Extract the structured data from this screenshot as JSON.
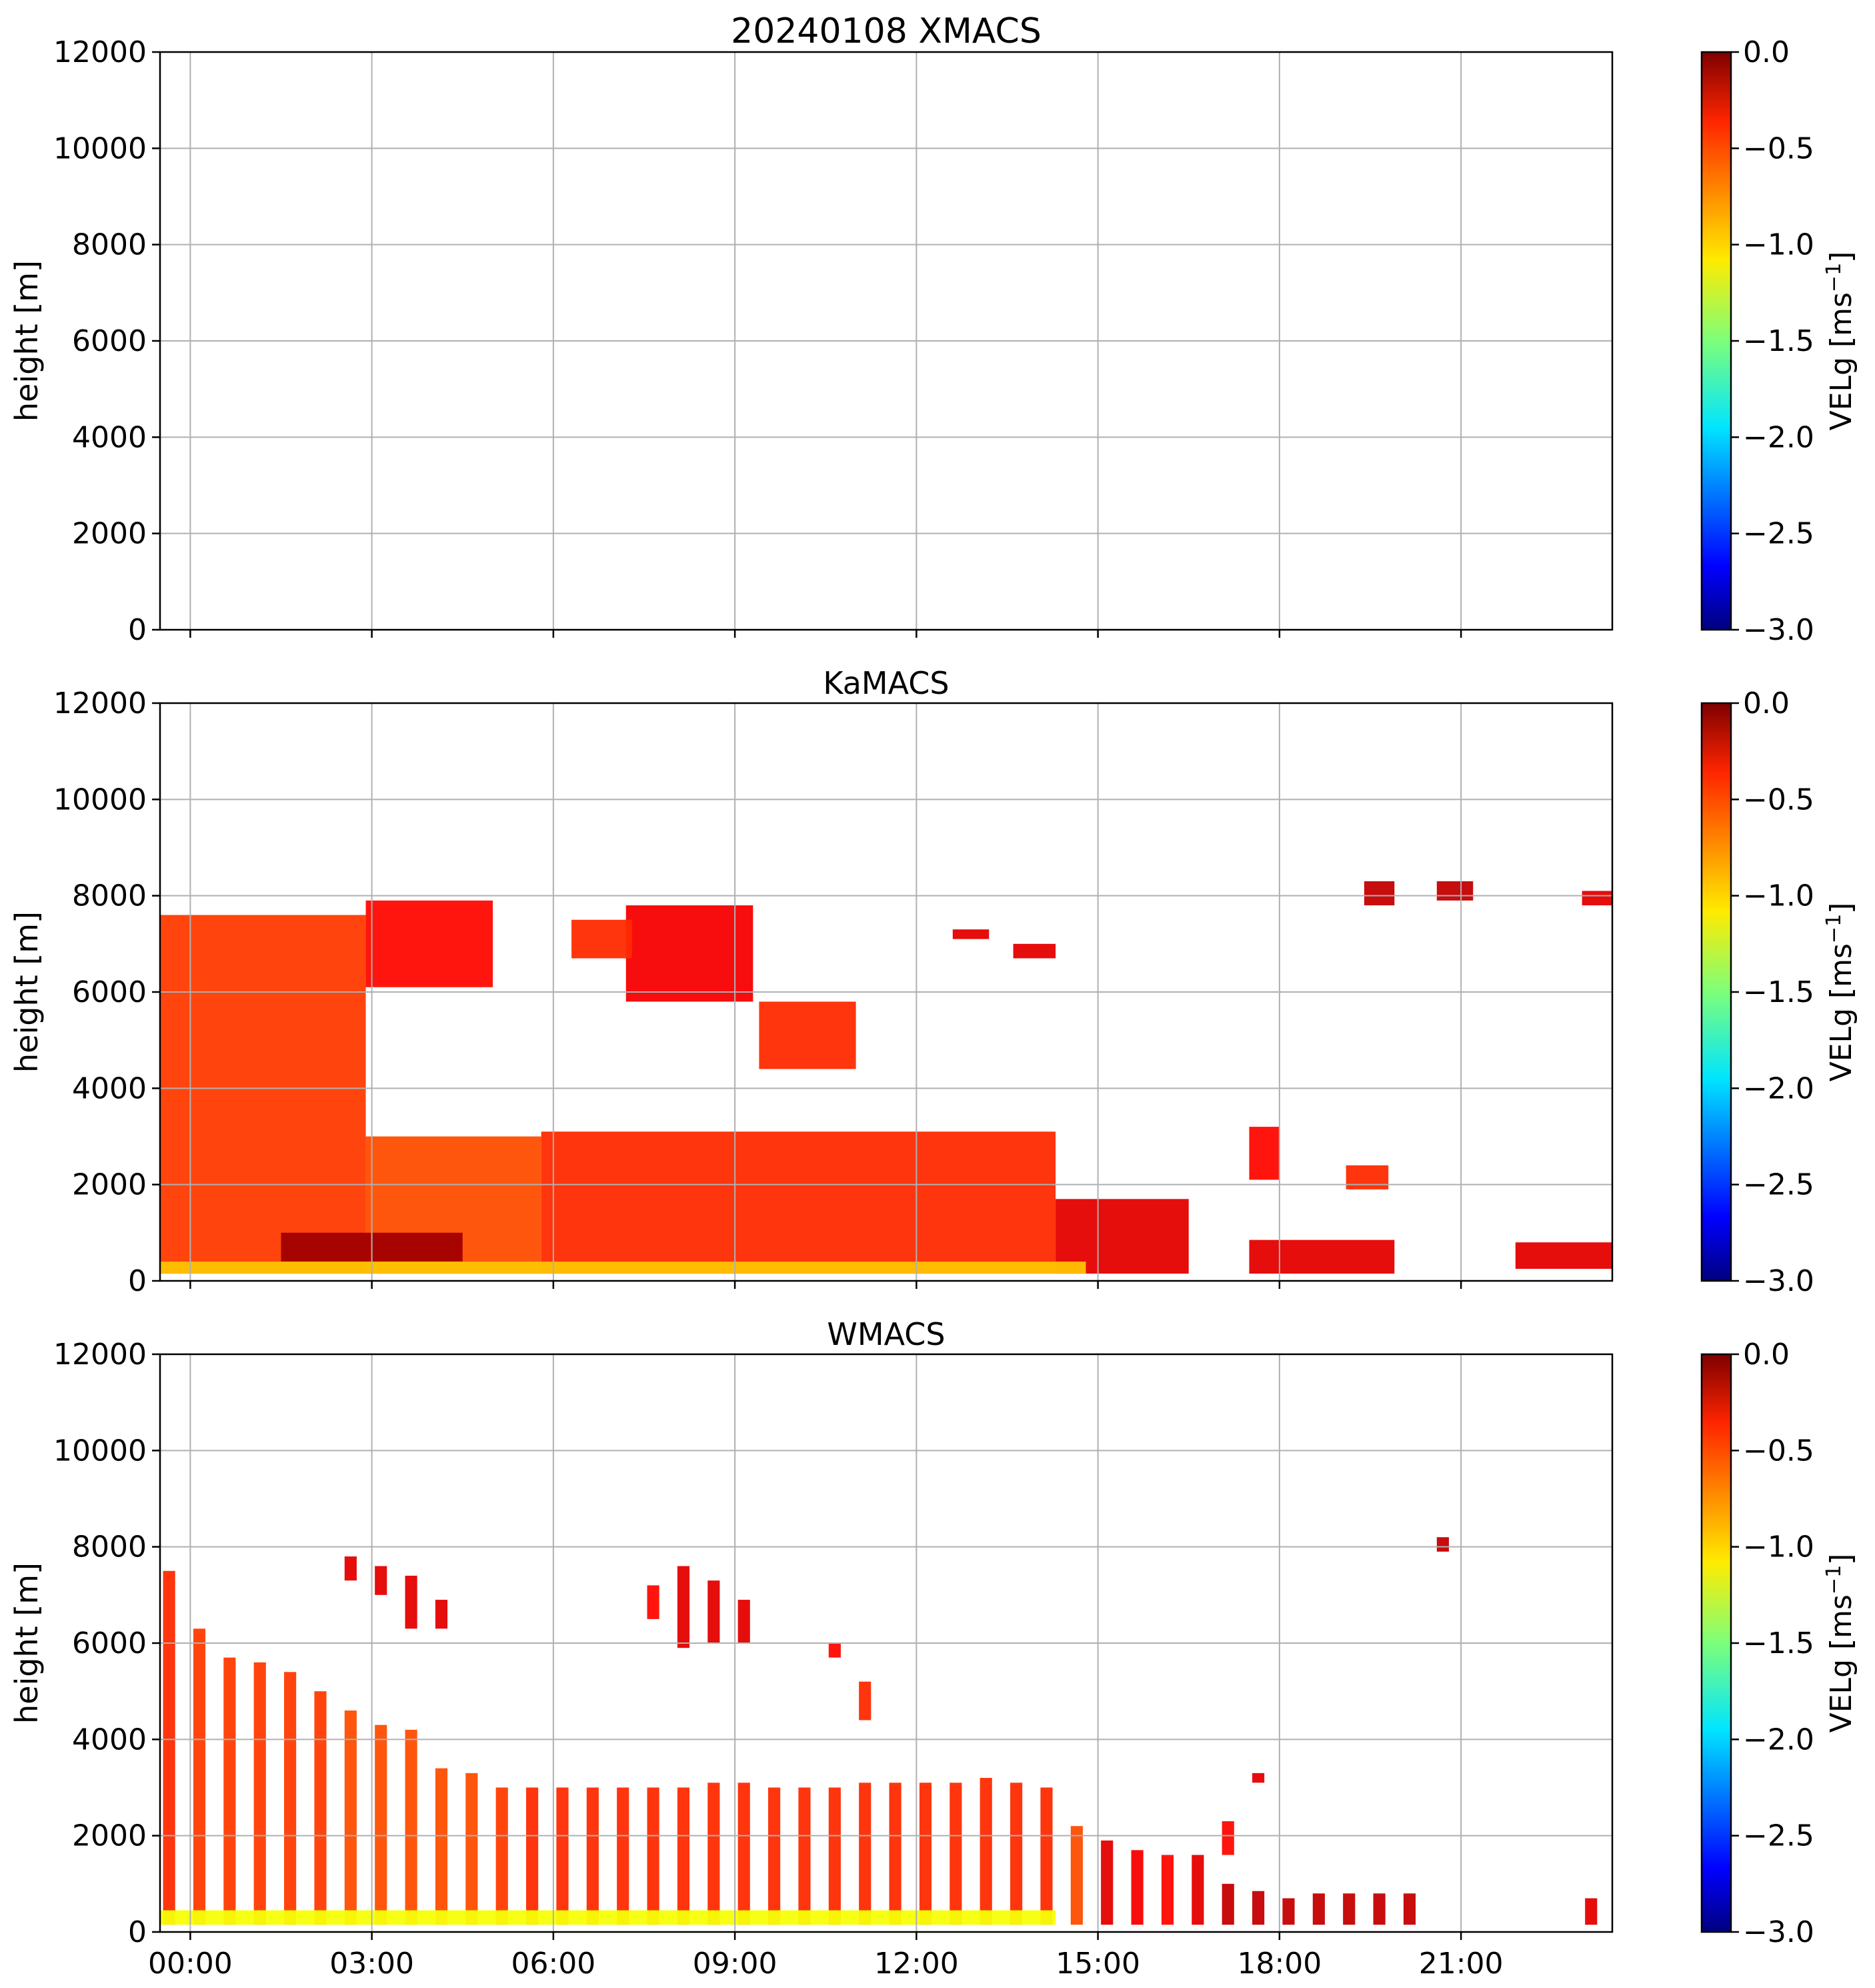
{
  "figure": {
    "title": "20240108 XMACS"
  },
  "chart_data": [
    {
      "type": "heatmap",
      "name": "XMACS",
      "title": "20240108 XMACS",
      "title_is_main": true,
      "ylabel": "height [m]",
      "ylim": [
        0,
        12000
      ],
      "y_ticks": [
        "0",
        "2000",
        "4000",
        "6000",
        "8000",
        "10000",
        "12000"
      ],
      "xlim_hours": [
        -0.5,
        23.5
      ],
      "x_ticks": [
        "00:00",
        "03:00",
        "06:00",
        "09:00",
        "12:00",
        "15:00",
        "18:00",
        "21:00"
      ],
      "x_tick_labels_shown": false,
      "grid": true,
      "colorbar": {
        "label_main": "VELg [ms",
        "label_sup": "−1",
        "label_end": "]",
        "range": [
          -3.0,
          0.0
        ],
        "ticks": [
          "0.0",
          "−0.5",
          "−1.0",
          "−1.5",
          "−2.0",
          "−2.5",
          "−3.0"
        ],
        "colormap": "jet"
      },
      "regions": []
    },
    {
      "type": "heatmap",
      "name": "KaMACS",
      "title": "KaMACS",
      "title_is_main": false,
      "ylabel": "height [m]",
      "ylim": [
        0,
        12000
      ],
      "y_ticks": [
        "0",
        "2000",
        "4000",
        "6000",
        "8000",
        "10000",
        "12000"
      ],
      "xlim_hours": [
        -0.5,
        23.5
      ],
      "x_ticks": [
        "00:00",
        "03:00",
        "06:00",
        "09:00",
        "12:00",
        "15:00",
        "18:00",
        "21:00"
      ],
      "x_tick_labels_shown": false,
      "grid": true,
      "colorbar": {
        "label_main": "VELg [ms",
        "label_sup": "−1",
        "label_end": "]",
        "range": [
          -3.0,
          0.0
        ],
        "ticks": [
          "0.0",
          "−0.5",
          "−1.0",
          "−1.5",
          "−2.0",
          "−2.5",
          "−3.0"
        ],
        "colormap": "jet"
      },
      "regions": [
        {
          "t0": -0.5,
          "t1": 2.9,
          "h0": 150,
          "h1": 7600,
          "v": -0.55
        },
        {
          "t0": 2.9,
          "t1": 5.8,
          "h0": 150,
          "h1": 3000,
          "v": -0.6
        },
        {
          "t0": 5.8,
          "t1": 14.3,
          "h0": 150,
          "h1": 3100,
          "v": -0.5
        },
        {
          "t0": 14.3,
          "t1": 16.5,
          "h0": 150,
          "h1": 1700,
          "v": -0.3
        },
        {
          "t0": 17.5,
          "t1": 19.9,
          "h0": 150,
          "h1": 850,
          "v": -0.3
        },
        {
          "t0": 21.9,
          "t1": 23.5,
          "h0": 250,
          "h1": 800,
          "v": -0.3
        },
        {
          "t0": 1.5,
          "t1": 4.5,
          "h0": 400,
          "h1": 1000,
          "v": -0.1
        },
        {
          "t0": -0.5,
          "t1": 14.8,
          "h0": 150,
          "h1": 400,
          "v": -0.95
        },
        {
          "t0": 2.9,
          "t1": 5.0,
          "h0": 6100,
          "h1": 7900,
          "v": -0.4
        },
        {
          "t0": 7.2,
          "t1": 9.3,
          "h0": 5800,
          "h1": 7800,
          "v": -0.35
        },
        {
          "t0": 9.4,
          "t1": 11.0,
          "h0": 4400,
          "h1": 5800,
          "v": -0.5
        },
        {
          "t0": 6.3,
          "t1": 7.3,
          "h0": 6700,
          "h1": 7500,
          "v": -0.5
        },
        {
          "t0": 13.6,
          "t1": 14.3,
          "h0": 6700,
          "h1": 7000,
          "v": -0.3
        },
        {
          "t0": 12.6,
          "t1": 13.2,
          "h0": 7100,
          "h1": 7300,
          "v": -0.3
        },
        {
          "t0": 17.5,
          "t1": 18.0,
          "h0": 2100,
          "h1": 3200,
          "v": -0.4
        },
        {
          "t0": 19.1,
          "t1": 19.8,
          "h0": 1900,
          "h1": 2400,
          "v": -0.5
        },
        {
          "t0": 19.4,
          "t1": 19.9,
          "h0": 7800,
          "h1": 8300,
          "v": -0.2
        },
        {
          "t0": 20.6,
          "t1": 21.2,
          "h0": 7900,
          "h1": 8300,
          "v": -0.2
        },
        {
          "t0": 23.0,
          "t1": 23.5,
          "h0": 7800,
          "h1": 8100,
          "v": -0.3
        }
      ]
    },
    {
      "type": "heatmap",
      "name": "WMACS",
      "title": "WMACS",
      "title_is_main": false,
      "ylabel": "height [m]",
      "ylim": [
        0,
        12000
      ],
      "y_ticks": [
        "0",
        "2000",
        "4000",
        "6000",
        "8000",
        "10000",
        "12000"
      ],
      "xlim_hours": [
        -0.5,
        23.5
      ],
      "x_ticks": [
        "00:00",
        "03:00",
        "06:00",
        "09:00",
        "12:00",
        "15:00",
        "18:00",
        "21:00"
      ],
      "x_tick_labels_shown": true,
      "grid": true,
      "colorbar": {
        "label_main": "VELg [ms",
        "label_sup": "−1",
        "label_end": "]",
        "range": [
          -3.0,
          0.0
        ],
        "ticks": [
          "0.0",
          "−0.5",
          "−1.0",
          "−1.5",
          "−2.0",
          "−2.5",
          "−3.0"
        ],
        "colormap": "jet"
      },
      "regions": [
        {
          "t0": -0.45,
          "t1": -0.25,
          "h0": 150,
          "h1": 7500,
          "v": -0.5
        },
        {
          "t0": 0.05,
          "t1": 0.25,
          "h0": 150,
          "h1": 6300,
          "v": -0.55
        },
        {
          "t0": 0.55,
          "t1": 0.75,
          "h0": 150,
          "h1": 5700,
          "v": -0.55
        },
        {
          "t0": 1.05,
          "t1": 1.25,
          "h0": 150,
          "h1": 5600,
          "v": -0.55
        },
        {
          "t0": 1.55,
          "t1": 1.75,
          "h0": 150,
          "h1": 5400,
          "v": -0.55
        },
        {
          "t0": 2.05,
          "t1": 2.25,
          "h0": 150,
          "h1": 5000,
          "v": -0.55
        },
        {
          "t0": 2.55,
          "t1": 2.75,
          "h0": 150,
          "h1": 4600,
          "v": -0.6
        },
        {
          "t0": 3.05,
          "t1": 3.25,
          "h0": 150,
          "h1": 4300,
          "v": -0.6
        },
        {
          "t0": 3.55,
          "t1": 3.75,
          "h0": 150,
          "h1": 4200,
          "v": -0.6
        },
        {
          "t0": 4.05,
          "t1": 4.25,
          "h0": 150,
          "h1": 3400,
          "v": -0.6
        },
        {
          "t0": 4.55,
          "t1": 4.75,
          "h0": 150,
          "h1": 3300,
          "v": -0.6
        },
        {
          "t0": 5.05,
          "t1": 5.25,
          "h0": 150,
          "h1": 3000,
          "v": -0.55
        },
        {
          "t0": 5.55,
          "t1": 5.75,
          "h0": 150,
          "h1": 3000,
          "v": -0.5
        },
        {
          "t0": 6.05,
          "t1": 6.25,
          "h0": 150,
          "h1": 3000,
          "v": -0.5
        },
        {
          "t0": 6.55,
          "t1": 6.75,
          "h0": 150,
          "h1": 3000,
          "v": -0.5
        },
        {
          "t0": 7.05,
          "t1": 7.25,
          "h0": 150,
          "h1": 3000,
          "v": -0.5
        },
        {
          "t0": 7.55,
          "t1": 7.75,
          "h0": 150,
          "h1": 3000,
          "v": -0.5
        },
        {
          "t0": 8.05,
          "t1": 8.25,
          "h0": 150,
          "h1": 3000,
          "v": -0.5
        },
        {
          "t0": 8.55,
          "t1": 8.75,
          "h0": 150,
          "h1": 3100,
          "v": -0.5
        },
        {
          "t0": 9.05,
          "t1": 9.25,
          "h0": 150,
          "h1": 3100,
          "v": -0.5
        },
        {
          "t0": 9.55,
          "t1": 9.75,
          "h0": 150,
          "h1": 3000,
          "v": -0.5
        },
        {
          "t0": 10.05,
          "t1": 10.25,
          "h0": 150,
          "h1": 3000,
          "v": -0.5
        },
        {
          "t0": 10.55,
          "t1": 10.75,
          "h0": 150,
          "h1": 3000,
          "v": -0.5
        },
        {
          "t0": 11.05,
          "t1": 11.25,
          "h0": 150,
          "h1": 3100,
          "v": -0.5
        },
        {
          "t0": 11.55,
          "t1": 11.75,
          "h0": 150,
          "h1": 3100,
          "v": -0.5
        },
        {
          "t0": 12.05,
          "t1": 12.25,
          "h0": 150,
          "h1": 3100,
          "v": -0.5
        },
        {
          "t0": 12.55,
          "t1": 12.75,
          "h0": 150,
          "h1": 3100,
          "v": -0.5
        },
        {
          "t0": 13.05,
          "t1": 13.25,
          "h0": 150,
          "h1": 3200,
          "v": -0.5
        },
        {
          "t0": 13.55,
          "t1": 13.75,
          "h0": 150,
          "h1": 3100,
          "v": -0.5
        },
        {
          "t0": 14.05,
          "t1": 14.25,
          "h0": 150,
          "h1": 3000,
          "v": -0.5
        },
        {
          "t0": 14.55,
          "t1": 14.75,
          "h0": 150,
          "h1": 2200,
          "v": -0.6
        },
        {
          "t0": 15.05,
          "t1": 15.25,
          "h0": 150,
          "h1": 1900,
          "v": -0.3
        },
        {
          "t0": 15.55,
          "t1": 15.75,
          "h0": 150,
          "h1": 1700,
          "v": -0.35
        },
        {
          "t0": 16.05,
          "t1": 16.25,
          "h0": 150,
          "h1": 1600,
          "v": -0.4
        },
        {
          "t0": 16.55,
          "t1": 16.75,
          "h0": 150,
          "h1": 1600,
          "v": -0.3
        },
        {
          "t0": 17.05,
          "t1": 17.25,
          "h0": 150,
          "h1": 1000,
          "v": -0.2
        },
        {
          "t0": 17.55,
          "t1": 17.75,
          "h0": 150,
          "h1": 850,
          "v": -0.2
        },
        {
          "t0": 18.05,
          "t1": 18.25,
          "h0": 150,
          "h1": 700,
          "v": -0.2
        },
        {
          "t0": 18.55,
          "t1": 18.75,
          "h0": 150,
          "h1": 800,
          "v": -0.2
        },
        {
          "t0": 19.05,
          "t1": 19.25,
          "h0": 150,
          "h1": 800,
          "v": -0.2
        },
        {
          "t0": 19.55,
          "t1": 19.75,
          "h0": 150,
          "h1": 800,
          "v": -0.2
        },
        {
          "t0": 20.05,
          "t1": 20.25,
          "h0": 150,
          "h1": 800,
          "v": -0.2
        },
        {
          "t0": 23.05,
          "t1": 23.25,
          "h0": 150,
          "h1": 700,
          "v": -0.3
        },
        {
          "t0": 2.55,
          "t1": 2.75,
          "h0": 7300,
          "h1": 7800,
          "v": -0.3
        },
        {
          "t0": 3.05,
          "t1": 3.25,
          "h0": 7000,
          "h1": 7600,
          "v": -0.3
        },
        {
          "t0": 3.55,
          "t1": 3.75,
          "h0": 6300,
          "h1": 7400,
          "v": -0.3
        },
        {
          "t0": 4.05,
          "t1": 4.25,
          "h0": 6300,
          "h1": 6900,
          "v": -0.3
        },
        {
          "t0": 7.55,
          "t1": 7.75,
          "h0": 6500,
          "h1": 7200,
          "v": -0.4
        },
        {
          "t0": 8.05,
          "t1": 8.25,
          "h0": 5900,
          "h1": 7600,
          "v": -0.3
        },
        {
          "t0": 8.55,
          "t1": 8.75,
          "h0": 6000,
          "h1": 7300,
          "v": -0.3
        },
        {
          "t0": 9.05,
          "t1": 9.25,
          "h0": 6000,
          "h1": 6900,
          "v": -0.3
        },
        {
          "t0": 10.55,
          "t1": 10.75,
          "h0": 5700,
          "h1": 6000,
          "v": -0.4
        },
        {
          "t0": 11.05,
          "t1": 11.25,
          "h0": 4400,
          "h1": 5200,
          "v": -0.5
        },
        {
          "t0": 17.05,
          "t1": 17.25,
          "h0": 1600,
          "h1": 2300,
          "v": -0.4
        },
        {
          "t0": 17.55,
          "t1": 17.75,
          "h0": 3100,
          "h1": 3300,
          "v": -0.3
        },
        {
          "t0": 20.6,
          "t1": 20.8,
          "h0": 7900,
          "h1": 8200,
          "v": -0.2
        },
        {
          "t0": -0.5,
          "t1": 14.3,
          "h0": 150,
          "h1": 450,
          "v": -1.15
        }
      ]
    }
  ]
}
